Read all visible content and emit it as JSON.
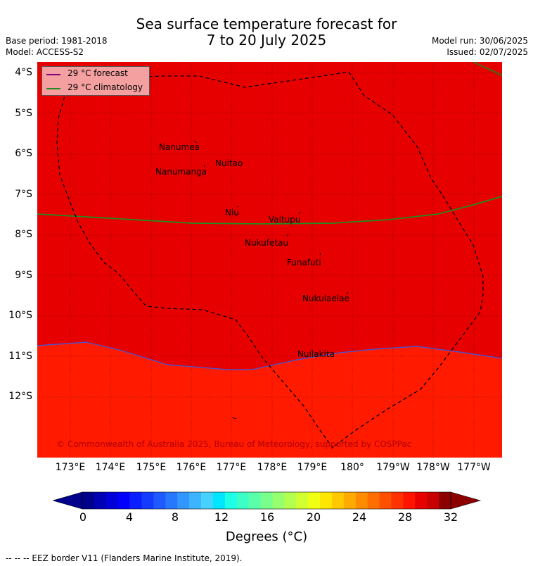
{
  "header": {
    "title_line1": "Sea surface temperature forecast for",
    "title_line2": "7 to 20 July 2025",
    "base_period": "Base period: 1981-2018",
    "model": "Model: ACCESS-S2",
    "model_run": "Model run: 30/06/2025",
    "issued": "Issued: 02/07/2025"
  },
  "legend": {
    "forecast_label": "29 °C  forecast",
    "climatology_label": "29 °C  climatology",
    "forecast_color": "#800080",
    "climatology_color": "#228B22"
  },
  "map": {
    "lat_labels": [
      "4°S",
      "5°S",
      "6°S",
      "7°S",
      "8°S",
      "9°S",
      "10°S",
      "11°S",
      "12°S"
    ],
    "lon_labels": [
      "173°E",
      "174°E",
      "175°E",
      "176°E",
      "177°E",
      "178°E",
      "179°E",
      "180°",
      "179°W",
      "178°W",
      "177°W"
    ],
    "islands": [
      "Nanumea",
      "Nuitao",
      "Nanumanga",
      "Niu",
      "Vaitupu",
      "Nukufetau",
      "Funafuti",
      "Nukulaelae",
      "Nuilakita"
    ],
    "copyright": "© Commonwealth of Australia 2025, Bureau of Meteorology, supported by COSPPac",
    "colors": {
      "north_region": "#e60000",
      "south_region": "#ff1a00"
    }
  },
  "colorbar": {
    "ticks": [
      "0",
      "4",
      "8",
      "12",
      "16",
      "20",
      "24",
      "28",
      "32"
    ],
    "units": "Degrees (°C)",
    "colors": [
      "#00008c",
      "#0000b4",
      "#0000d8",
      "#0000ff",
      "#0a1eff",
      "#143cff",
      "#1e5aff",
      "#2878ff",
      "#3296ff",
      "#3cb4ff",
      "#46d2ff",
      "#00e6ff",
      "#1effe6",
      "#3cffc8",
      "#5affaa",
      "#78ff8c",
      "#96ff6e",
      "#b4ff50",
      "#d2ff32",
      "#f0ff14",
      "#ffe600",
      "#ffc800",
      "#ffaa00",
      "#ff8c00",
      "#ff6e00",
      "#ff5000",
      "#ff3200",
      "#ff1400",
      "#e60000",
      "#c80000",
      "#8c0000"
    ],
    "low_color": "#00008c",
    "high_color": "#8c0000"
  },
  "footer": {
    "eez_text": "--  --  -- EEZ border V11 (Flanders Marine Institute, 2019)."
  }
}
